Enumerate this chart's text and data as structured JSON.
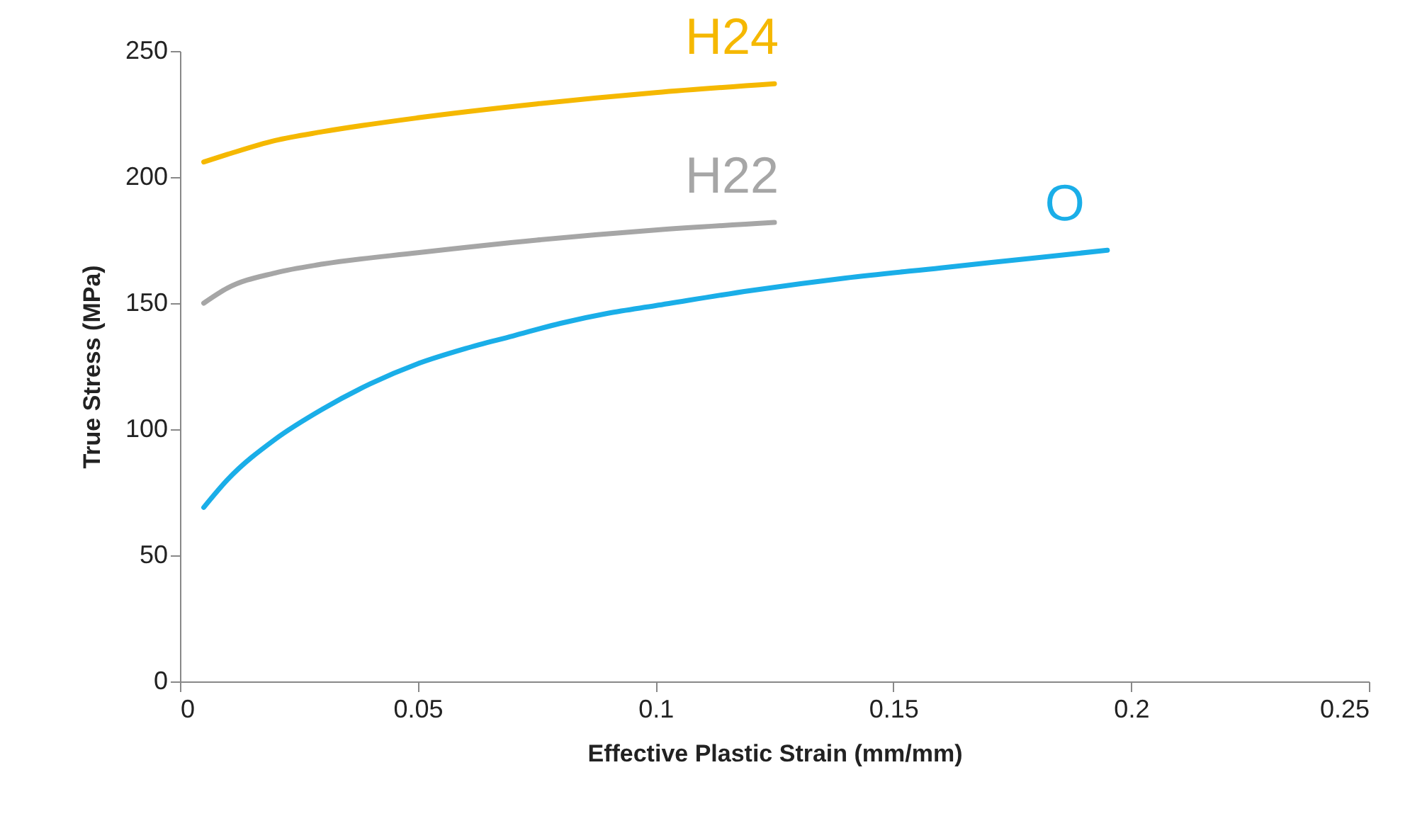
{
  "chart_data": {
    "type": "line",
    "xlabel": "Effective Plastic Strain (mm/mm)",
    "ylabel": "True Stress (MPa)",
    "xlim": [
      0,
      0.25
    ],
    "xticks": [
      0,
      0.05,
      0.1,
      0.15,
      0.2,
      0.25
    ],
    "ylim": [
      0,
      250
    ],
    "yticks": [
      0,
      50,
      100,
      150,
      200,
      250
    ],
    "grid": false,
    "legend": false,
    "marker": "none",
    "line_style": "solid",
    "series": [
      {
        "name": "H24",
        "color": "#f5b800",
        "x": [
          0.005,
          0.01,
          0.02,
          0.03,
          0.05,
          0.075,
          0.1,
          0.125
        ],
        "values": [
          206,
          209,
          214.5,
          218,
          223.5,
          229,
          233.5,
          237
        ]
      },
      {
        "name": "H22",
        "color": "#a6a6a6",
        "x": [
          0.005,
          0.01,
          0.02,
          0.03,
          0.05,
          0.075,
          0.1,
          0.125
        ],
        "values": [
          150,
          156,
          162,
          165.5,
          170,
          175,
          179,
          182
        ]
      },
      {
        "name": "O",
        "color": "#1aaee8",
        "x": [
          0.005,
          0.01,
          0.02,
          0.03,
          0.04,
          0.05,
          0.06,
          0.07,
          0.08,
          0.09,
          0.1,
          0.12,
          0.14,
          0.16,
          0.18,
          0.195
        ],
        "values": [
          69,
          80,
          96,
          108,
          118,
          126,
          132,
          137,
          142,
          146,
          149,
          155,
          160,
          164,
          168,
          171
        ]
      }
    ]
  }
}
